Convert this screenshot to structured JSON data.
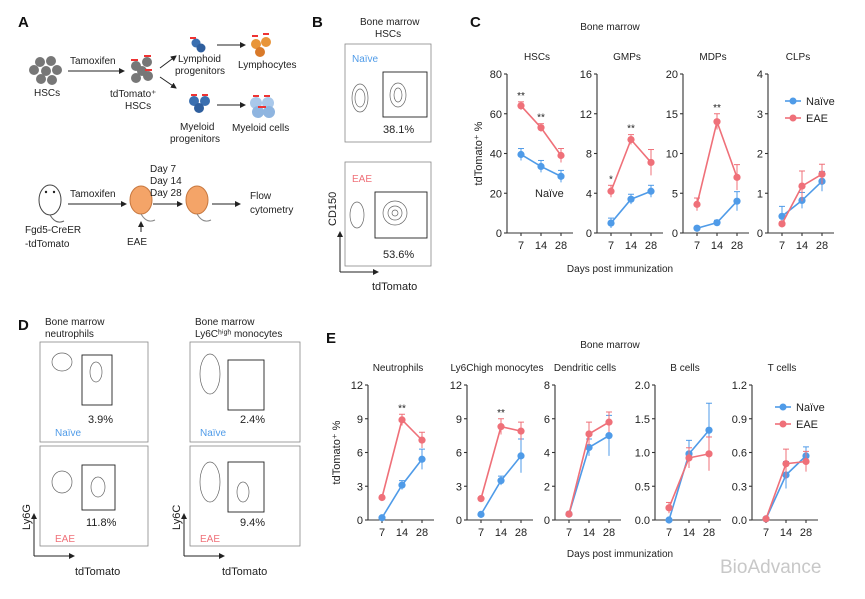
{
  "panel_labels": {
    "a": "A",
    "b": "B",
    "c": "C",
    "d": "D",
    "e": "E"
  },
  "schematic": {
    "tamoxifen": "Tamoxifen",
    "hscs": "HSCs",
    "tdtomato_hscs_1": "tdTomato⁺",
    "tdtomato_hscs_2": "HSCs",
    "lymphoid_1": "Lymphoid",
    "lymphoid_2": "progenitors",
    "lymphocytes": "Lymphocytes",
    "myeloid_1": "Myeloid",
    "myeloid_2": "progenitors",
    "myeloid_cells": "Myeloid cells",
    "tamoxifen2": "Tamoxifen",
    "day7": "Day 7",
    "day14": "Day 14",
    "day28": "Day 28",
    "flow_1": "Flow",
    "flow_2": "cytometry",
    "mouse_1": "Fgd5-CreER",
    "mouse_2": "-tdTomato",
    "eae": "EAE"
  },
  "flow_b": {
    "title_1": "Bone marrow",
    "title_2": "HSCs",
    "naive_label": "Naïve",
    "naive_pct": "38.1%",
    "eae_label": "EAE",
    "eae_pct": "53.6%",
    "y_axis": "CD150",
    "x_axis": "tdTomato"
  },
  "flow_d": {
    "neut_title_1": "Bone marrow",
    "neut_title_2": "neutrophils",
    "mono_title_1": "Bone marrow",
    "mono_title_2": "Ly6Cʰⁱᵍʰ monocytes",
    "neut_naive_pct": "3.9%",
    "neut_eae_pct": "11.8%",
    "mono_naive_pct": "2.4%",
    "mono_eae_pct": "9.4%",
    "naive_label": "Naïve",
    "eae_label": "EAE",
    "neut_y_axis": "Ly6G",
    "mono_y_axis": "Ly6C",
    "x_axis": "tdTomato"
  },
  "colors": {
    "naive": "#4f9be8",
    "eae": "#ef7079"
  },
  "watermark": "BioAdvance",
  "chart_data": [
    {
      "type": "line",
      "panel": "C",
      "title": "Bone marrow",
      "ylabel": "tdTomato⁺ %",
      "xlabel": "Days post immunization",
      "x": [
        7,
        14,
        28
      ],
      "legend": [
        "Naïve",
        "EAE"
      ],
      "legend_placement": "right",
      "annotation": "Naïve",
      "subplots": [
        {
          "title": "HSCs",
          "ylim": [
            0,
            80
          ],
          "yticks": [
            "0",
            "20",
            "40",
            "60",
            "80"
          ],
          "series": [
            {
              "name": "Naïve",
              "values": [
                39.5,
                33.5,
                28.5
              ],
              "err": [
                3,
                3,
                3
              ]
            },
            {
              "name": "EAE",
              "values": [
                64,
                53,
                39
              ],
              "err": [
                2,
                2,
                3.5
              ]
            }
          ],
          "sig": [
            "**",
            "**",
            ""
          ]
        },
        {
          "title": "GMPs",
          "ylim": [
            0,
            16
          ],
          "yticks": [
            "0",
            "4",
            "8",
            "12",
            "16"
          ],
          "series": [
            {
              "name": "Naïve",
              "values": [
                1,
                3.4,
                4.2
              ],
              "err": [
                0.5,
                0.5,
                0.6
              ]
            },
            {
              "name": "EAE",
              "values": [
                4.2,
                9.4,
                7.1
              ],
              "err": [
                0.6,
                0.5,
                1.3
              ]
            }
          ],
          "sig": [
            "*",
            "**",
            ""
          ]
        },
        {
          "title": "MDPs",
          "ylim": [
            0,
            20
          ],
          "yticks": [
            "0",
            "5",
            "10",
            "15",
            "20"
          ],
          "series": [
            {
              "name": "Naïve",
              "values": [
                0.6,
                1.3,
                4
              ],
              "err": [
                0.2,
                0.3,
                1.2
              ]
            },
            {
              "name": "EAE",
              "values": [
                3.6,
                14,
                7
              ],
              "err": [
                0.8,
                1,
                1.6
              ]
            }
          ],
          "sig": [
            "",
            "**",
            ""
          ]
        },
        {
          "title": "CLPs",
          "ylim": [
            0,
            4
          ],
          "yticks": [
            "0",
            "1",
            "2",
            "3",
            "4"
          ],
          "series": [
            {
              "name": "Naïve",
              "values": [
                0.42,
                0.82,
                1.3
              ],
              "err": [
                0.25,
                0.2,
                0.25
              ]
            },
            {
              "name": "EAE",
              "values": [
                0.23,
                1.18,
                1.48
              ],
              "err": [
                0.05,
                0.38,
                0.25
              ]
            }
          ],
          "sig": [
            "",
            "",
            ""
          ]
        }
      ]
    },
    {
      "type": "line",
      "panel": "E",
      "title": "Bone marrow",
      "ylabel": "tdTomato⁺ %",
      "xlabel": "Days post immunization",
      "x": [
        7,
        14,
        28
      ],
      "legend": [
        "Naïve",
        "EAE"
      ],
      "legend_placement": "right",
      "subplots": [
        {
          "title": "Neutrophils",
          "ylim": [
            0,
            12
          ],
          "yticks": [
            "0",
            "3",
            "6",
            "9",
            "12"
          ],
          "series": [
            {
              "name": "Naïve",
              "values": [
                0.2,
                3.1,
                5.4
              ],
              "err": [
                0.1,
                0.4,
                0.9
              ]
            },
            {
              "name": "EAE",
              "values": [
                2,
                8.9,
                7.1
              ],
              "err": [
                0.1,
                0.5,
                0.7
              ]
            }
          ],
          "sig": [
            "",
            "**",
            ""
          ]
        },
        {
          "title": "Ly6Chigh monocytes",
          "ylim": [
            0,
            12
          ],
          "yticks": [
            "0",
            "3",
            "6",
            "9",
            "12"
          ],
          "series": [
            {
              "name": "Naïve",
              "values": [
                0.5,
                3.5,
                5.7
              ],
              "err": [
                0.1,
                0.4,
                1.5
              ]
            },
            {
              "name": "EAE",
              "values": [
                1.9,
                8.3,
                7.9
              ],
              "err": [
                0.1,
                0.7,
                0.8
              ]
            }
          ],
          "sig": [
            "",
            "**",
            ""
          ]
        },
        {
          "title": "Dendritic cells",
          "ylim": [
            0,
            8
          ],
          "yticks": [
            "0",
            "2",
            "4",
            "6",
            "8"
          ],
          "series": [
            {
              "name": "Naïve",
              "values": [
                0.35,
                4.3,
                5
              ],
              "err": [
                0.1,
                0.5,
                1.2
              ]
            },
            {
              "name": "EAE",
              "values": [
                0.35,
                5.1,
                5.8
              ],
              "err": [
                0.1,
                0.7,
                0.6
              ]
            }
          ],
          "sig": [
            "",
            "",
            ""
          ]
        },
        {
          "title": "B cells",
          "ylim": [
            0,
            2
          ],
          "yticks": [
            "0.0",
            "0.5",
            "1.0",
            "1.5",
            "2.0"
          ],
          "series": [
            {
              "name": "Naïve",
              "values": [
                0,
                0.98,
                1.33
              ],
              "err": [
                0.02,
                0.2,
                0.4
              ]
            },
            {
              "name": "EAE",
              "values": [
                0.18,
                0.92,
                0.98
              ],
              "err": [
                0.08,
                0.15,
                0.25
              ]
            }
          ],
          "sig": [
            "",
            "",
            ""
          ]
        },
        {
          "title": "T cells",
          "ylim": [
            0,
            1.2
          ],
          "yticks": [
            "0.0",
            "0.3",
            "0.6",
            "0.9",
            "1.2"
          ],
          "series": [
            {
              "name": "Naïve",
              "values": [
                0.01,
                0.4,
                0.57
              ],
              "err": [
                0.01,
                0.12,
                0.08
              ]
            },
            {
              "name": "EAE",
              "values": [
                0.01,
                0.5,
                0.52
              ],
              "err": [
                0.01,
                0.13,
                0.09
              ]
            }
          ],
          "sig": [
            "",
            "",
            ""
          ]
        }
      ]
    }
  ]
}
